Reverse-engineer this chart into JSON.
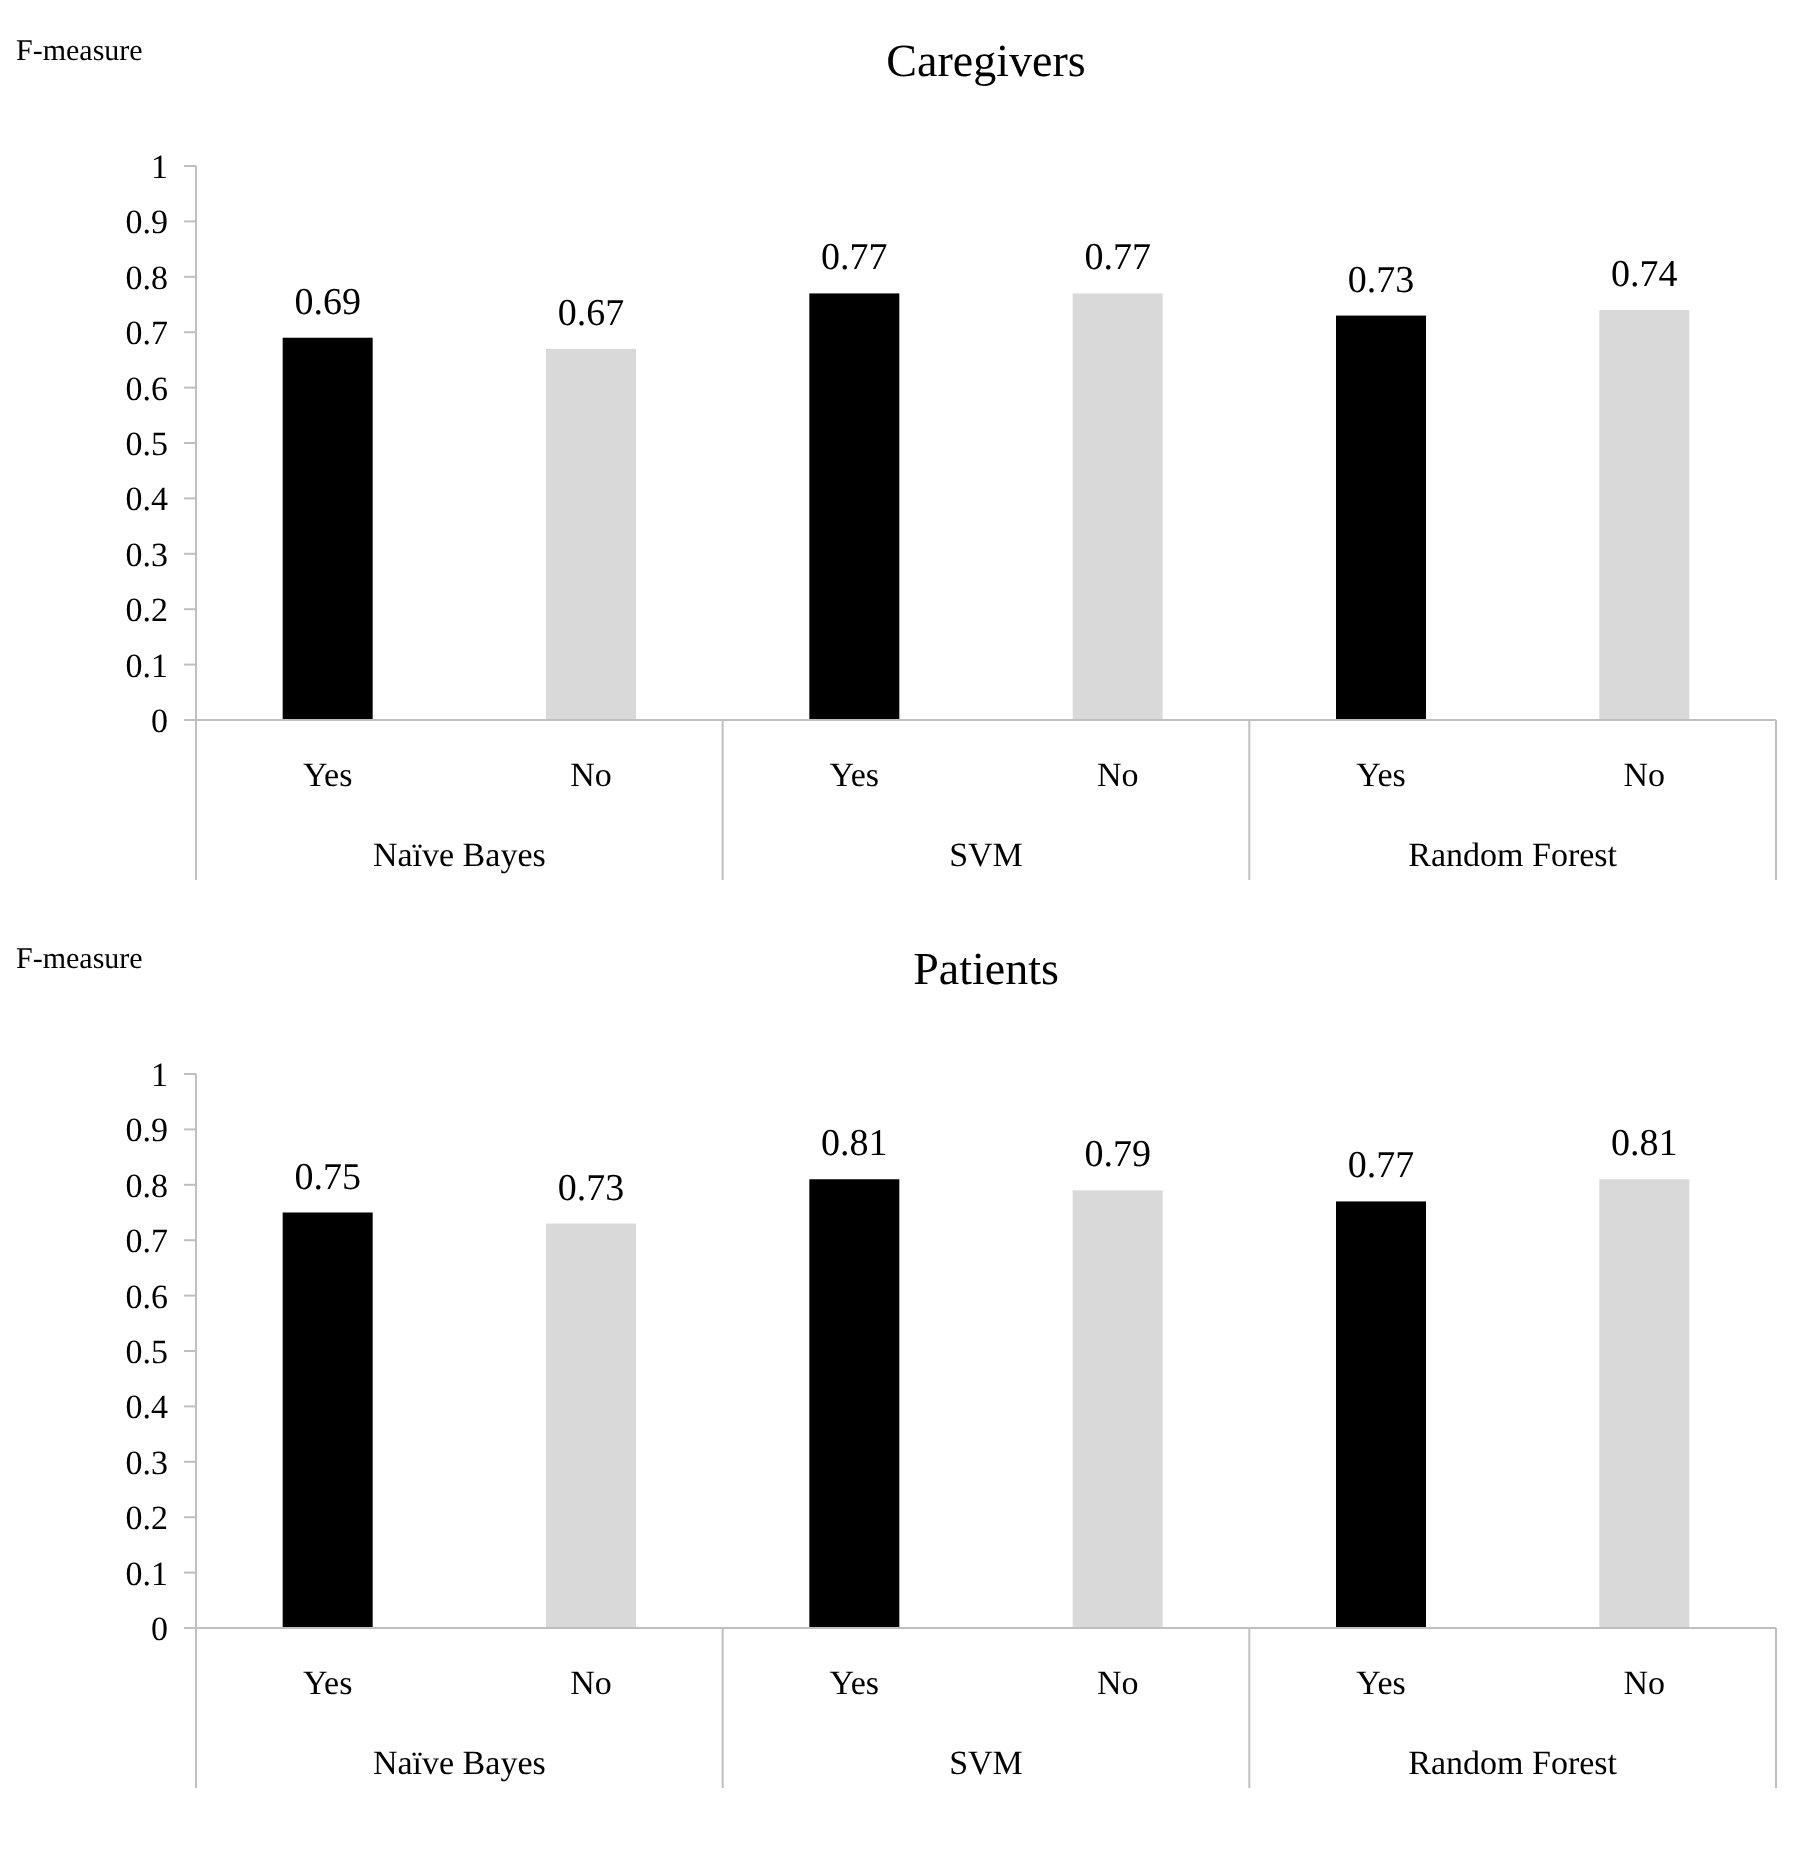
{
  "chart_data": [
    {
      "type": "bar",
      "title": "Caregivers",
      "ylabel": "F-measure",
      "categories": [
        "Yes",
        "No",
        "Yes",
        "No",
        "Yes",
        "No"
      ],
      "values": [
        0.69,
        0.67,
        0.77,
        0.77,
        0.73,
        0.74
      ],
      "colors": [
        "#000000",
        "#d9d9d9",
        "#000000",
        "#d9d9d9",
        "#000000",
        "#d9d9d9"
      ],
      "ylim": [
        0,
        1
      ],
      "yticks": [
        0,
        0.1,
        0.2,
        0.3,
        0.4,
        0.5,
        0.6,
        0.7,
        0.8,
        0.9,
        1
      ],
      "data_labels": true,
      "annotations": [
        "Naïve Bayes",
        "SVM",
        "Random Forest"
      ]
    },
    {
      "type": "bar",
      "title": "Patients",
      "ylabel": "F-measure",
      "categories": [
        "Yes",
        "No",
        "Yes",
        "No",
        "Yes",
        "No"
      ],
      "values": [
        0.75,
        0.73,
        0.81,
        0.79,
        0.77,
        0.81
      ],
      "colors": [
        "#000000",
        "#d9d9d9",
        "#000000",
        "#d9d9d9",
        "#000000",
        "#d9d9d9"
      ],
      "ylim": [
        0,
        1
      ],
      "yticks": [
        0,
        0.1,
        0.2,
        0.3,
        0.4,
        0.5,
        0.6,
        0.7,
        0.8,
        0.9,
        1
      ],
      "data_labels": true,
      "annotations": [
        "Naïve Bayes",
        "SVM",
        "Random Forest"
      ]
    }
  ]
}
